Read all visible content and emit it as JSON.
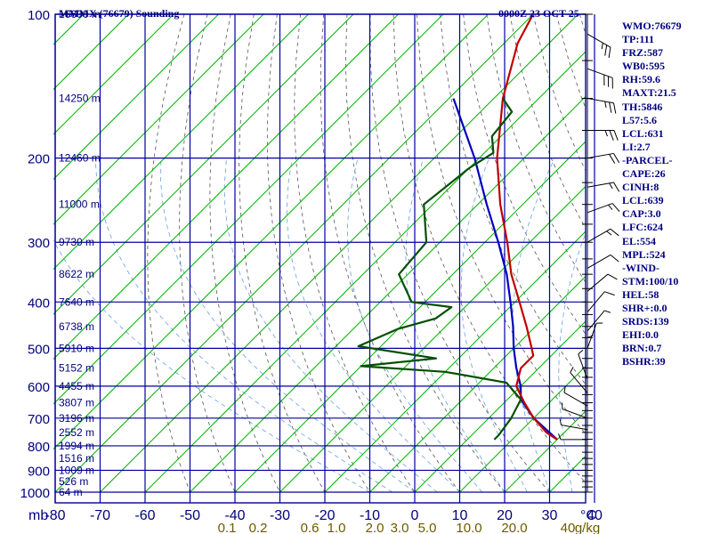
{
  "header": {
    "title": "MMMX (76679) Sounding",
    "datetime": "0000Z 23 OCT 25"
  },
  "indices": [
    "WMO:76679",
    "TP:111",
    "FRZ:587",
    "WB0:595",
    "RH:59.6",
    "MAXT:21.5",
    "TH:5846",
    "L57:5.6",
    "LCL:631",
    "LI:2.7",
    "-PARCEL-",
    "CAPE:26",
    "CINH:8",
    "LCL:639",
    "CAP:3.0",
    "LFC:624",
    "EL:554",
    "MPL:524",
    "-WIND-",
    "STM:100/10",
    "HEL:58",
    "SHR+:0.0",
    "SRDS:139",
    "EHI:0.0",
    "BRN:0.7",
    "BSHR:39"
  ],
  "colors": {
    "grid": "#0000a0",
    "label": "#000080",
    "isotherm": "#00b400",
    "dry_adiabat": "#555555",
    "moist_adiabat": "#6aa0e0",
    "mixing_ratio_label": "#6b5a00",
    "temperature": "#c00000",
    "dewpoint": "#005000",
    "parcel": "#0000c0",
    "wind": "#000000"
  },
  "chart_data": {
    "type": "skew-t",
    "xlabel": "mb",
    "xunit": "°C",
    "ylabel": "",
    "pressure_levels": [
      100,
      200,
      300,
      400,
      500,
      600,
      700,
      800,
      900,
      1000
    ],
    "temperature_ticks": [
      -80,
      -70,
      -60,
      -50,
      -40,
      -30,
      -20,
      -10,
      0,
      10,
      20,
      30,
      40
    ],
    "height_labels": [
      {
        "p": 100,
        "label": "16600 m"
      },
      {
        "p": 150,
        "label": "14250 m"
      },
      {
        "p": 200,
        "label": "12460 m"
      },
      {
        "p": 250,
        "label": "11000 m"
      },
      {
        "p": 300,
        "label": "9730 m"
      },
      {
        "p": 350,
        "label": "8622 m"
      },
      {
        "p": 400,
        "label": "7640 m"
      },
      {
        "p": 450,
        "label": "6738 m"
      },
      {
        "p": 500,
        "label": "5910 m"
      },
      {
        "p": 550,
        "label": "5152 m"
      },
      {
        "p": 600,
        "label": "4455 m"
      },
      {
        "p": 650,
        "label": "3807 m"
      },
      {
        "p": 700,
        "label": "3196 m"
      },
      {
        "p": 750,
        "label": "2552 m"
      },
      {
        "p": 800,
        "label": "1994 m"
      },
      {
        "p": 850,
        "label": "1516 m"
      },
      {
        "p": 900,
        "label": "1009 m"
      },
      {
        "p": 950,
        "label": "526 m"
      },
      {
        "p": 1000,
        "label": "64 m"
      }
    ],
    "mixing_ratio_labels": [
      "0.1",
      "0.2",
      "0.6",
      "1.0",
      "2.0",
      "3.0",
      "5.0",
      "10.0",
      "20.0",
      "40",
      "g/kg"
    ],
    "temperature": [
      {
        "p": 100,
        "t": -80
      },
      {
        "p": 115,
        "t": -77
      },
      {
        "p": 150,
        "t": -68
      },
      {
        "p": 200,
        "t": -56
      },
      {
        "p": 250,
        "t": -45
      },
      {
        "p": 300,
        "t": -35
      },
      {
        "p": 350,
        "t": -27
      },
      {
        "p": 400,
        "t": -19
      },
      {
        "p": 450,
        "t": -12
      },
      {
        "p": 500,
        "t": -6
      },
      {
        "p": 518,
        "t": -4
      },
      {
        "p": 550,
        "t": -4
      },
      {
        "p": 600,
        "t": -1
      },
      {
        "p": 650,
        "t": 4.5
      },
      {
        "p": 700,
        "t": 10
      },
      {
        "p": 750,
        "t": 16
      },
      {
        "p": 776,
        "t": 20
      }
    ],
    "dewpoint": [
      {
        "p": 150,
        "t": -68
      },
      {
        "p": 160,
        "t": -63
      },
      {
        "p": 180,
        "t": -62
      },
      {
        "p": 195,
        "t": -58
      },
      {
        "p": 210,
        "t": -60
      },
      {
        "p": 250,
        "t": -62
      },
      {
        "p": 300,
        "t": -53
      },
      {
        "p": 350,
        "t": -52
      },
      {
        "p": 400,
        "t": -43
      },
      {
        "p": 410,
        "t": -33
      },
      {
        "p": 433,
        "t": -34
      },
      {
        "p": 455,
        "t": -40
      },
      {
        "p": 495,
        "t": -45
      },
      {
        "p": 525,
        "t": -25
      },
      {
        "p": 545,
        "t": -40
      },
      {
        "p": 560,
        "t": -20
      },
      {
        "p": 590,
        "t": -4
      },
      {
        "p": 640,
        "t": 3
      },
      {
        "p": 700,
        "t": 5
      },
      {
        "p": 760,
        "t": 6
      },
      {
        "p": 776,
        "t": 6
      }
    ],
    "parcel": [
      {
        "p": 776,
        "t": 20
      },
      {
        "p": 700,
        "t": 10
      },
      {
        "p": 640,
        "t": 3
      },
      {
        "p": 600,
        "t": 0
      },
      {
        "p": 550,
        "t": -5
      },
      {
        "p": 500,
        "t": -10
      },
      {
        "p": 450,
        "t": -15
      },
      {
        "p": 400,
        "t": -21
      },
      {
        "p": 350,
        "t": -28
      },
      {
        "p": 300,
        "t": -37
      },
      {
        "p": 250,
        "t": -48
      },
      {
        "p": 200,
        "t": -61
      },
      {
        "p": 150,
        "t": -79
      }
    ],
    "wind_barbs": [
      {
        "p": 110,
        "dir": 300,
        "spd": 25
      },
      {
        "p": 130,
        "dir": 290,
        "spd": 30
      },
      {
        "p": 150,
        "dir": 280,
        "spd": 25
      },
      {
        "p": 175,
        "dir": 270,
        "spd": 25
      },
      {
        "p": 200,
        "dir": 260,
        "spd": 20
      },
      {
        "p": 230,
        "dir": 260,
        "spd": 15
      },
      {
        "p": 260,
        "dir": 250,
        "spd": 15
      },
      {
        "p": 300,
        "dir": 240,
        "spd": 15
      },
      {
        "p": 340,
        "dir": 240,
        "spd": 10
      },
      {
        "p": 380,
        "dir": 230,
        "spd": 10
      },
      {
        "p": 420,
        "dir": 220,
        "spd": 10
      },
      {
        "p": 460,
        "dir": 220,
        "spd": 5
      },
      {
        "p": 500,
        "dir": 200,
        "spd": 5
      },
      {
        "p": 540,
        "dir": 180,
        "spd": 5
      },
      {
        "p": 580,
        "dir": 160,
        "spd": 5
      },
      {
        "p": 620,
        "dir": 140,
        "spd": 5
      },
      {
        "p": 660,
        "dir": 120,
        "spd": 5
      },
      {
        "p": 700,
        "dir": 110,
        "spd": 5
      },
      {
        "p": 740,
        "dir": 100,
        "spd": 5
      },
      {
        "p": 776,
        "dir": 90,
        "spd": 5
      }
    ]
  }
}
